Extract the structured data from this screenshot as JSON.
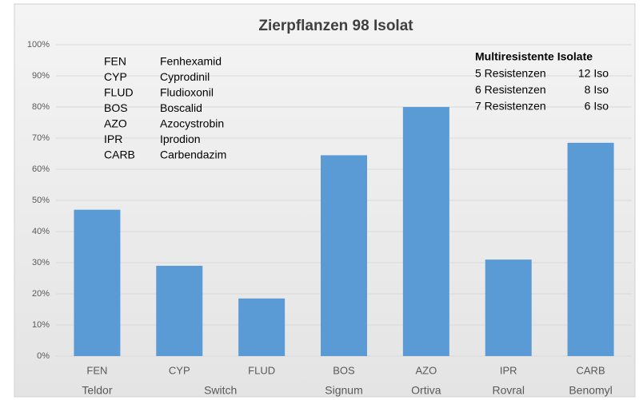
{
  "chart_data": {
    "type": "bar",
    "title": "Zierpflanzen 98 Isolat",
    "categories": [
      "FEN",
      "CYP",
      "FLUD",
      "BOS",
      "AZO",
      "IPR",
      "CARB"
    ],
    "values": [
      47,
      29,
      18.5,
      64.5,
      80,
      31,
      68.5
    ],
    "color": "#5b9bd5",
    "ylim": [
      0,
      100
    ],
    "yticks": [
      {
        "value": 0,
        "label": "0%"
      },
      {
        "value": 10,
        "label": "10%"
      },
      {
        "value": 20,
        "label": "20%"
      },
      {
        "value": 30,
        "label": "30%"
      },
      {
        "value": 40,
        "label": "40%"
      },
      {
        "value": 50,
        "label": "50%"
      },
      {
        "value": 60,
        "label": "60%"
      },
      {
        "value": 70,
        "label": "70%"
      },
      {
        "value": 80,
        "label": "80%"
      },
      {
        "value": 90,
        "label": "90%"
      },
      {
        "value": 100,
        "label": "100%"
      }
    ],
    "grid": true,
    "products": [
      {
        "label": "Teldor",
        "categories": [
          0
        ]
      },
      {
        "label": "Switch",
        "categories": [
          1,
          2
        ]
      },
      {
        "label": "Signum",
        "categories": [
          3
        ]
      },
      {
        "label": "Ortiva",
        "categories": [
          4
        ]
      },
      {
        "label": "Rovral",
        "categories": [
          5
        ]
      },
      {
        "label": "Benomyl",
        "categories": [
          6
        ]
      }
    ],
    "legend": [
      [
        "FEN",
        "Fenhexamid"
      ],
      [
        "CYP",
        "Cyprodinil"
      ],
      [
        "FLUD",
        "Fludioxonil"
      ],
      [
        "BOS",
        "Boscalid"
      ],
      [
        "AZO",
        "Azocystrobin"
      ],
      [
        "IPR",
        "Iprodion"
      ],
      [
        "CARB",
        "Carbendazim"
      ]
    ],
    "annotation": {
      "title": "Multiresistente Isolate",
      "rows": [
        [
          "5 Resistenzen",
          "12 Iso"
        ],
        [
          "6 Resistenzen",
          "8 Iso"
        ],
        [
          "7 Resistenzen",
          "6 Iso"
        ]
      ]
    }
  }
}
